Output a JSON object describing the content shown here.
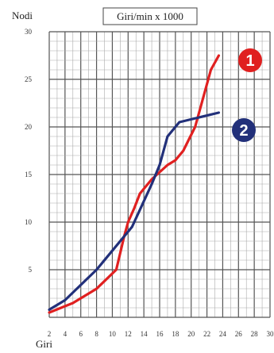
{
  "chart_data": {
    "type": "line",
    "title": "Giri/min x 1000",
    "ylabel": "Nodi",
    "xlabel": "Giri",
    "xlim": [
      2,
      30
    ],
    "ylim": [
      0,
      30
    ],
    "x_ticks": [
      "2",
      "4",
      "6",
      "8",
      "10",
      "12",
      "14",
      "16",
      "18",
      "20",
      "22",
      "24",
      "26",
      "28",
      "30"
    ],
    "y_ticks": [
      "5",
      "10",
      "15",
      "20",
      "25",
      "30"
    ],
    "grid": true,
    "series": [
      {
        "name": "1",
        "color": "#e02020",
        "x": [
          2,
          5,
          8,
          10.5,
          11.5,
          12,
          12.8,
          13.5,
          15,
          17,
          18,
          19,
          20.5,
          21.5,
          22.5,
          23.5
        ],
        "y": [
          0.5,
          1.5,
          3,
          5,
          8.5,
          10,
          11.5,
          13,
          14.5,
          16,
          16.5,
          17.5,
          20,
          23,
          26,
          27.5
        ]
      },
      {
        "name": "2",
        "color": "#22307a",
        "x": [
          2,
          4,
          8,
          12.5,
          15,
          16,
          17,
          18.5,
          21,
          23.5
        ],
        "y": [
          0.8,
          1.8,
          5,
          9.5,
          14,
          16,
          19,
          20.5,
          21,
          21.5
        ]
      }
    ]
  }
}
